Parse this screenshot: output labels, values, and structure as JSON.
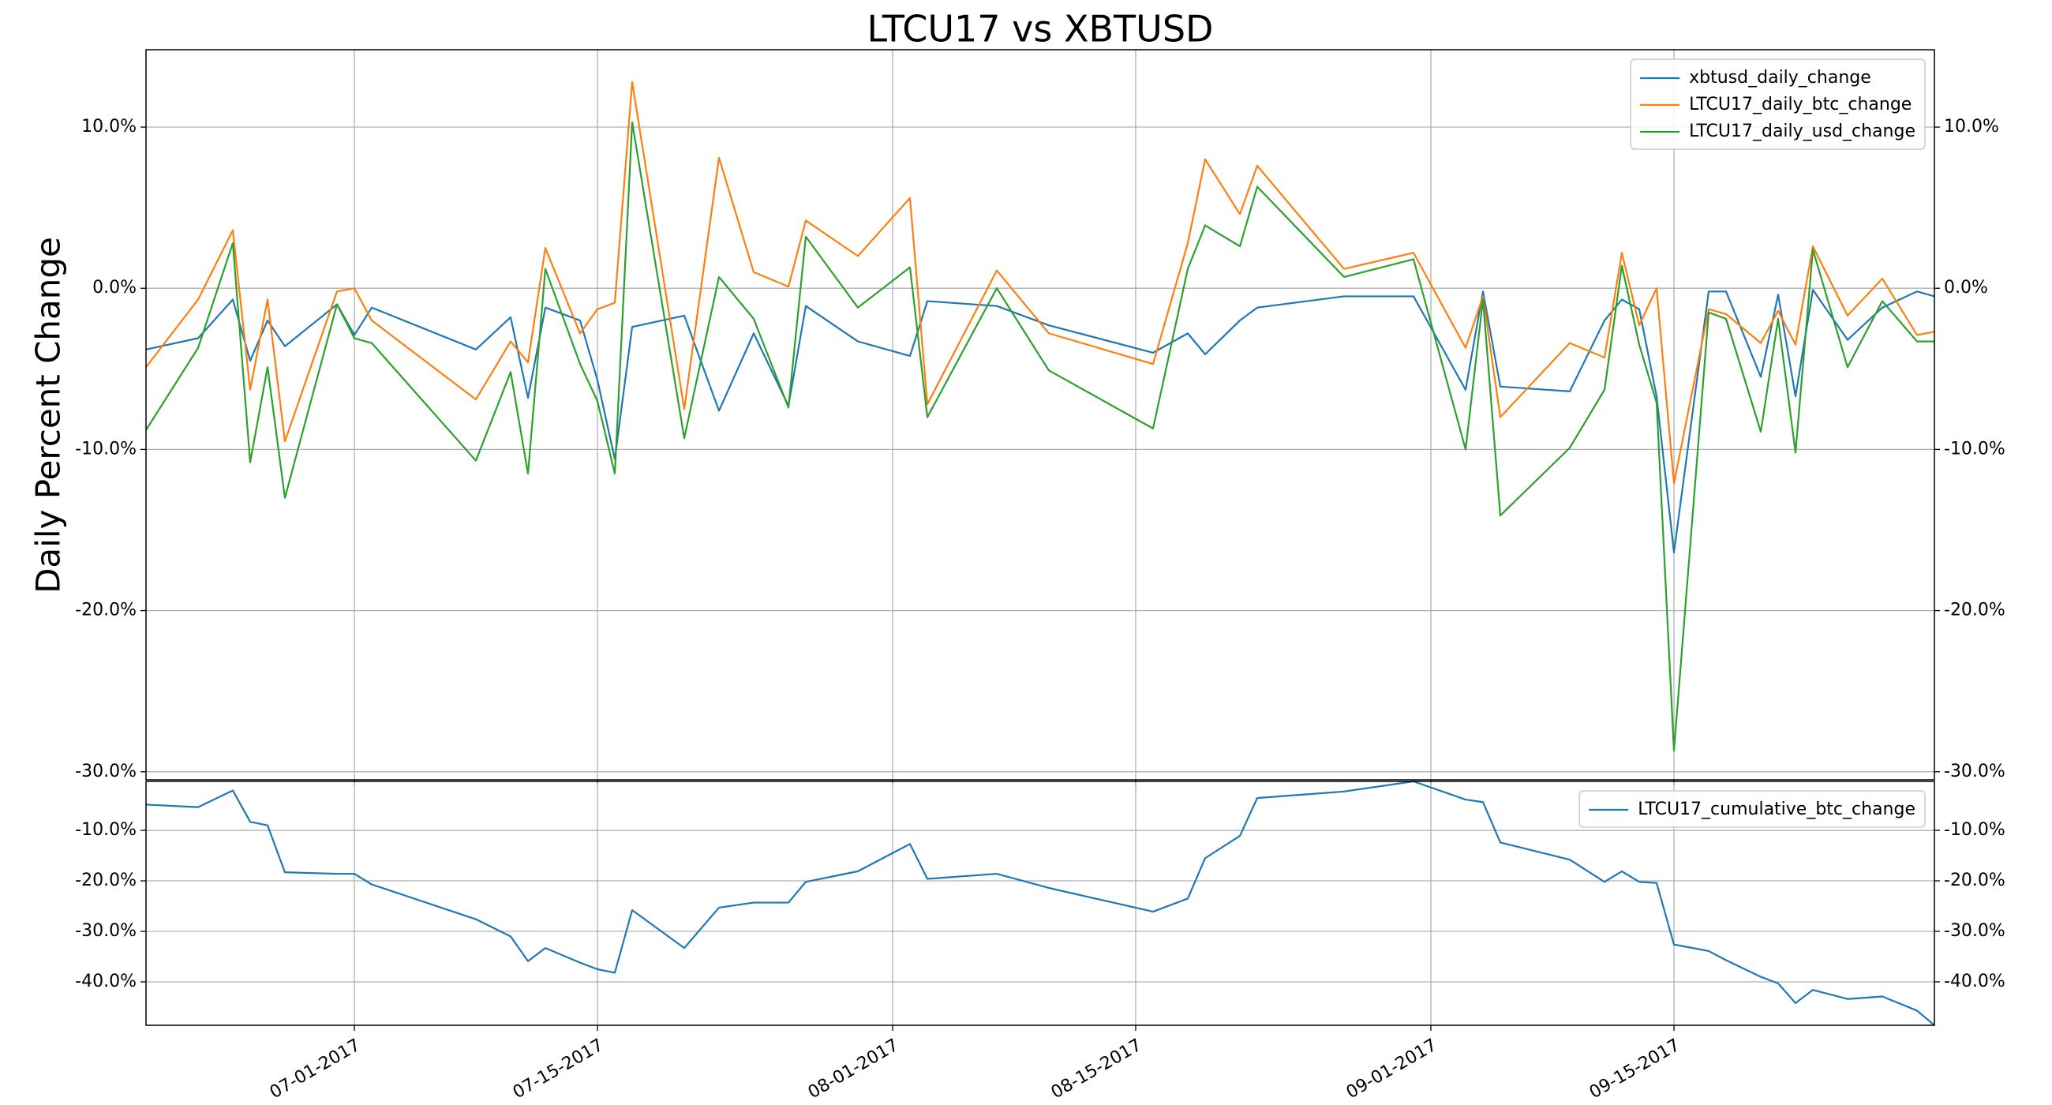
{
  "chart_data": [
    {
      "type": "line",
      "title": "LTCU17 vs XBTUSD",
      "ylabel": "Daily Percent Change",
      "x": [
        "06-19-2017",
        "06-22-2017",
        "06-24-2017",
        "06-25-2017",
        "06-26-2017",
        "06-27-2017",
        "06-30-2017",
        "07-01-2017",
        "07-02-2017",
        "07-08-2017",
        "07-10-2017",
        "07-11-2017",
        "07-12-2017",
        "07-14-2017",
        "07-15-2017",
        "07-16-2017",
        "07-17-2017",
        "07-20-2017",
        "07-22-2017",
        "07-24-2017",
        "07-26-2017",
        "07-27-2017",
        "07-30-2017",
        "08-02-2017",
        "08-03-2017",
        "08-07-2017",
        "08-10-2017",
        "08-16-2017",
        "08-18-2017",
        "08-19-2017",
        "08-21-2017",
        "08-22-2017",
        "08-27-2017",
        "08-31-2017",
        "09-03-2017",
        "09-04-2017",
        "09-05-2017",
        "09-09-2017",
        "09-11-2017",
        "09-12-2017",
        "09-13-2017",
        "09-14-2017",
        "09-15-2017",
        "09-17-2017",
        "09-18-2017",
        "09-20-2017",
        "09-21-2017",
        "09-22-2017",
        "09-23-2017",
        "09-25-2017",
        "09-27-2017",
        "09-29-2017",
        "09-30-2017"
      ],
      "series": [
        {
          "name": "xbtusd_daily_change",
          "color": "#1f77b4",
          "values": [
            -3.8,
            -3.1,
            -0.7,
            -4.5,
            -2.0,
            -3.6,
            -1.0,
            -2.9,
            -1.2,
            -3.8,
            -1.8,
            -6.8,
            -1.2,
            -2.0,
            -5.7,
            -10.6,
            -2.4,
            -1.7,
            -7.6,
            -2.8,
            -7.3,
            -1.1,
            -3.3,
            -4.2,
            -0.8,
            -1.1,
            -2.3,
            -4.0,
            -2.8,
            -4.1,
            -2.0,
            -1.2,
            -0.5,
            -0.5,
            -6.3,
            -0.2,
            -6.1,
            -6.4,
            -2.0,
            -0.7,
            -1.3,
            -6.7,
            -16.4,
            -0.2,
            -0.2,
            -5.5,
            -0.4,
            -6.7,
            -0.1,
            -3.2,
            -1.2,
            -0.2,
            -0.5
          ]
        },
        {
          "name": "LTCU17_daily_btc_change",
          "color": "#ff7f0e",
          "values": [
            -4.9,
            -0.7,
            3.6,
            -6.3,
            -0.7,
            -9.5,
            -0.2,
            0.0,
            -2.0,
            -6.9,
            -3.3,
            -4.6,
            2.5,
            -2.8,
            -1.3,
            -0.9,
            12.8,
            -7.5,
            8.1,
            1.0,
            0.1,
            4.2,
            2.0,
            5.6,
            -7.2,
            1.1,
            -2.8,
            -4.7,
            2.8,
            8.0,
            4.6,
            7.6,
            1.2,
            2.2,
            -3.7,
            -0.5,
            -8.0,
            -3.4,
            -4.3,
            2.2,
            -2.3,
            0.0,
            -12.1,
            -1.3,
            -1.6,
            -3.4,
            -1.4,
            -3.5,
            2.6,
            -1.7,
            0.6,
            -2.9,
            -2.7
          ]
        },
        {
          "name": "LTCU17_daily_usd_change",
          "color": "#2ca02c",
          "values": [
            -8.8,
            -3.7,
            2.8,
            -10.8,
            -4.9,
            -13.0,
            -1.0,
            -3.1,
            -3.4,
            -10.7,
            -5.2,
            -11.5,
            1.2,
            -4.7,
            -7.0,
            -11.5,
            10.3,
            -9.3,
            0.7,
            -1.9,
            -7.4,
            3.2,
            -1.2,
            1.3,
            -8.0,
            0.0,
            -5.1,
            -8.7,
            1.2,
            3.9,
            2.6,
            6.3,
            0.7,
            1.8,
            -10.0,
            -0.7,
            -14.1,
            -9.9,
            -6.3,
            1.4,
            -3.5,
            -7.1,
            -28.7,
            -1.5,
            -1.9,
            -8.9,
            -1.9,
            -10.2,
            2.4,
            -4.9,
            -0.8,
            -3.3,
            -3.3
          ]
        }
      ],
      "xlim": [
        "06-19-2017",
        "09-30-2017"
      ],
      "xticks": [
        "07-01-2017",
        "07-15-2017",
        "08-01-2017",
        "08-15-2017",
        "09-01-2017",
        "09-15-2017"
      ],
      "ylim": [
        -30.5,
        14.8
      ],
      "yticks": [
        {
          "value": -30,
          "label": "-30.0%"
        },
        {
          "value": -20,
          "label": "-20.0%"
        },
        {
          "value": -10,
          "label": "-10.0%"
        },
        {
          "value": 0,
          "label": "0.0%"
        },
        {
          "value": 10,
          "label": "10.0%"
        }
      ],
      "grid": true,
      "legend": "upper right"
    },
    {
      "type": "line",
      "x": [
        "06-19-2017",
        "06-22-2017",
        "06-24-2017",
        "06-25-2017",
        "06-26-2017",
        "06-27-2017",
        "06-30-2017",
        "07-01-2017",
        "07-02-2017",
        "07-08-2017",
        "07-10-2017",
        "07-11-2017",
        "07-12-2017",
        "07-14-2017",
        "07-15-2017",
        "07-16-2017",
        "07-17-2017",
        "07-20-2017",
        "07-22-2017",
        "07-24-2017",
        "07-26-2017",
        "07-27-2017",
        "07-30-2017",
        "08-02-2017",
        "08-03-2017",
        "08-07-2017",
        "08-10-2017",
        "08-16-2017",
        "08-18-2017",
        "08-19-2017",
        "08-21-2017",
        "08-22-2017",
        "08-27-2017",
        "08-31-2017",
        "09-03-2017",
        "09-04-2017",
        "09-05-2017",
        "09-09-2017",
        "09-11-2017",
        "09-12-2017",
        "09-13-2017",
        "09-14-2017",
        "09-15-2017",
        "09-17-2017",
        "09-18-2017",
        "09-20-2017",
        "09-21-2017",
        "09-22-2017",
        "09-23-2017",
        "09-25-2017",
        "09-27-2017",
        "09-29-2017",
        "09-30-2017"
      ],
      "series": [
        {
          "name": "LTCU17_cumulative_btc_change",
          "color": "#1f77b4",
          "values": [
            -4.9,
            -5.4,
            -2.1,
            -8.3,
            -9.0,
            -18.3,
            -18.6,
            -18.6,
            -20.7,
            -27.6,
            -31.0,
            -35.9,
            -33.3,
            -36.2,
            -37.5,
            -38.2,
            -25.8,
            -33.3,
            -25.3,
            -24.3,
            -24.3,
            -20.2,
            -18.1,
            -12.7,
            -19.6,
            -18.6,
            -21.4,
            -26.1,
            -23.5,
            -15.5,
            -11.1,
            -3.6,
            -2.3,
            -0.3,
            -3.9,
            -4.4,
            -12.4,
            -15.8,
            -20.2,
            -18.1,
            -20.2,
            -20.4,
            -32.6,
            -33.9,
            -35.7,
            -39.0,
            -40.3,
            -44.2,
            -41.6,
            -43.4,
            -42.9,
            -45.7,
            -48.6
          ]
        }
      ],
      "xlim": [
        "06-19-2017",
        "09-30-2017"
      ],
      "xticks": [
        "07-01-2017",
        "07-15-2017",
        "08-01-2017",
        "08-15-2017",
        "09-01-2017",
        "09-15-2017"
      ],
      "ylim": [
        -48.6,
        -0.3
      ],
      "yticks": [
        {
          "value": -40,
          "label": "-40.0%"
        },
        {
          "value": -30,
          "label": "-30.0%"
        },
        {
          "value": -20,
          "label": "-20.0%"
        },
        {
          "value": -10,
          "label": "-10.0%"
        }
      ],
      "grid": true,
      "legend": "upper right"
    }
  ]
}
